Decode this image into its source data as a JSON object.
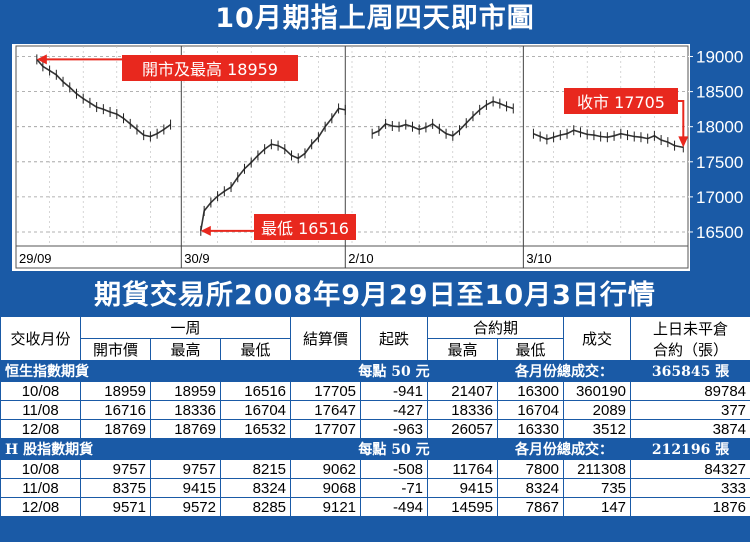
{
  "title": "10月期指上周四天即市圖",
  "table_title": "期貨交易所2008年9月29日至10月3日行情",
  "chart_data": {
    "type": "line",
    "ylim": [
      16300,
      19150
    ],
    "yticks": [
      16500,
      17000,
      17500,
      18000,
      18500,
      19000
    ],
    "xlim": [
      0,
      100
    ],
    "day_labels": [
      {
        "label": "29/09",
        "x": 0
      },
      {
        "label": "30/9",
        "x": 24.6
      },
      {
        "label": "2/10",
        "x": 49
      },
      {
        "label": "3/10",
        "x": 75.5
      }
    ],
    "annotations": [
      {
        "text": "開市及最高 18959",
        "x": 3.1,
        "y": 18959
      },
      {
        "text": "最低 16516",
        "x": 27.5,
        "y": 16516
      },
      {
        "text": "收市 17705",
        "x": 99.3,
        "y": 17705
      }
    ],
    "segments": [
      [
        [
          3.1,
          18959
        ],
        [
          4,
          18860
        ],
        [
          5,
          18800
        ],
        [
          6,
          18740
        ],
        [
          7,
          18640
        ],
        [
          8,
          18560
        ],
        [
          9,
          18470
        ],
        [
          10,
          18400
        ],
        [
          11,
          18340
        ],
        [
          12,
          18280
        ],
        [
          13,
          18250
        ],
        [
          14,
          18210
        ],
        [
          15,
          18180
        ],
        [
          16,
          18120
        ],
        [
          17,
          18040
        ],
        [
          18,
          17960
        ],
        [
          19,
          17880
        ],
        [
          20,
          17860
        ],
        [
          21,
          17900
        ],
        [
          22,
          17960
        ],
        [
          23,
          18030
        ]
      ],
      [
        [
          27.5,
          16516
        ],
        [
          28,
          16800
        ],
        [
          29,
          16920
        ],
        [
          30,
          17010
        ],
        [
          31,
          17080
        ],
        [
          32,
          17140
        ],
        [
          33,
          17280
        ],
        [
          34,
          17400
        ],
        [
          35,
          17490
        ],
        [
          36,
          17590
        ],
        [
          37,
          17680
        ],
        [
          38,
          17750
        ],
        [
          39,
          17730
        ],
        [
          40,
          17680
        ],
        [
          41,
          17590
        ],
        [
          42,
          17550
        ],
        [
          43,
          17620
        ],
        [
          44,
          17750
        ],
        [
          45,
          17850
        ],
        [
          46,
          18000
        ],
        [
          47,
          18120
        ],
        [
          48,
          18260
        ],
        [
          49,
          18240
        ]
      ],
      [
        [
          53,
          17900
        ],
        [
          54,
          17940
        ],
        [
          55,
          18040
        ],
        [
          56,
          18010
        ],
        [
          57,
          18000
        ],
        [
          58,
          18030
        ],
        [
          59,
          18000
        ],
        [
          60,
          17960
        ],
        [
          61,
          17990
        ],
        [
          62,
          18040
        ],
        [
          63,
          17970
        ],
        [
          64,
          17900
        ],
        [
          65,
          17870
        ],
        [
          66,
          17950
        ],
        [
          67,
          18050
        ],
        [
          68,
          18150
        ],
        [
          69,
          18240
        ],
        [
          70,
          18310
        ],
        [
          71,
          18360
        ],
        [
          72,
          18330
        ],
        [
          73,
          18290
        ],
        [
          74,
          18260
        ]
      ],
      [
        [
          77,
          17900
        ],
        [
          78,
          17860
        ],
        [
          79,
          17820
        ],
        [
          80,
          17850
        ],
        [
          81,
          17880
        ],
        [
          82,
          17900
        ],
        [
          83,
          17950
        ],
        [
          84,
          17920
        ],
        [
          85,
          17890
        ],
        [
          86,
          17880
        ],
        [
          87,
          17860
        ],
        [
          88,
          17850
        ],
        [
          89,
          17870
        ],
        [
          90,
          17900
        ],
        [
          91,
          17880
        ],
        [
          92,
          17860
        ],
        [
          93,
          17850
        ],
        [
          94,
          17830
        ],
        [
          95,
          17870
        ],
        [
          96,
          17810
        ],
        [
          97,
          17780
        ],
        [
          98,
          17730
        ],
        [
          99.3,
          17705
        ]
      ]
    ]
  },
  "table": {
    "header": {
      "month": "交收月份",
      "week": "一周",
      "open": "開市價",
      "high": "最高",
      "low": "最低",
      "settle": "結算價",
      "change": "起跌",
      "contract": "合約期",
      "c_high": "最高",
      "c_low": "最低",
      "volume": "成交",
      "oi_line1": "上日未平倉",
      "oi_line2": "合約（張）"
    },
    "sections": [
      {
        "name": "恒生指數期貨",
        "point": "每點 50 元",
        "total_label": "各月份總成交：",
        "total_value": "365845 張",
        "rows": [
          [
            "10/08",
            "18959",
            "18959",
            "16516",
            "17705",
            "-941",
            "21407",
            "16300",
            "360190",
            "89784"
          ],
          [
            "11/08",
            "16716",
            "18336",
            "16704",
            "17647",
            "-427",
            "18336",
            "16704",
            "2089",
            "377"
          ],
          [
            "12/08",
            "18769",
            "18769",
            "16532",
            "17707",
            "-963",
            "26057",
            "16330",
            "3512",
            "3874"
          ]
        ]
      },
      {
        "name": "H 股指數期貨",
        "point": "每點 50 元",
        "total_label": "各月份總成交：",
        "total_value": "212196 張",
        "rows": [
          [
            "10/08",
            "9757",
            "9757",
            "8215",
            "9062",
            "-508",
            "11764",
            "7800",
            "211308",
            "84327"
          ],
          [
            "11/08",
            "8375",
            "9415",
            "8324",
            "9068",
            "-71",
            "9415",
            "8324",
            "735",
            "333"
          ],
          [
            "12/08",
            "9571",
            "9572",
            "8285",
            "9121",
            "-494",
            "14595",
            "7867",
            "147",
            "1876"
          ]
        ]
      }
    ]
  }
}
